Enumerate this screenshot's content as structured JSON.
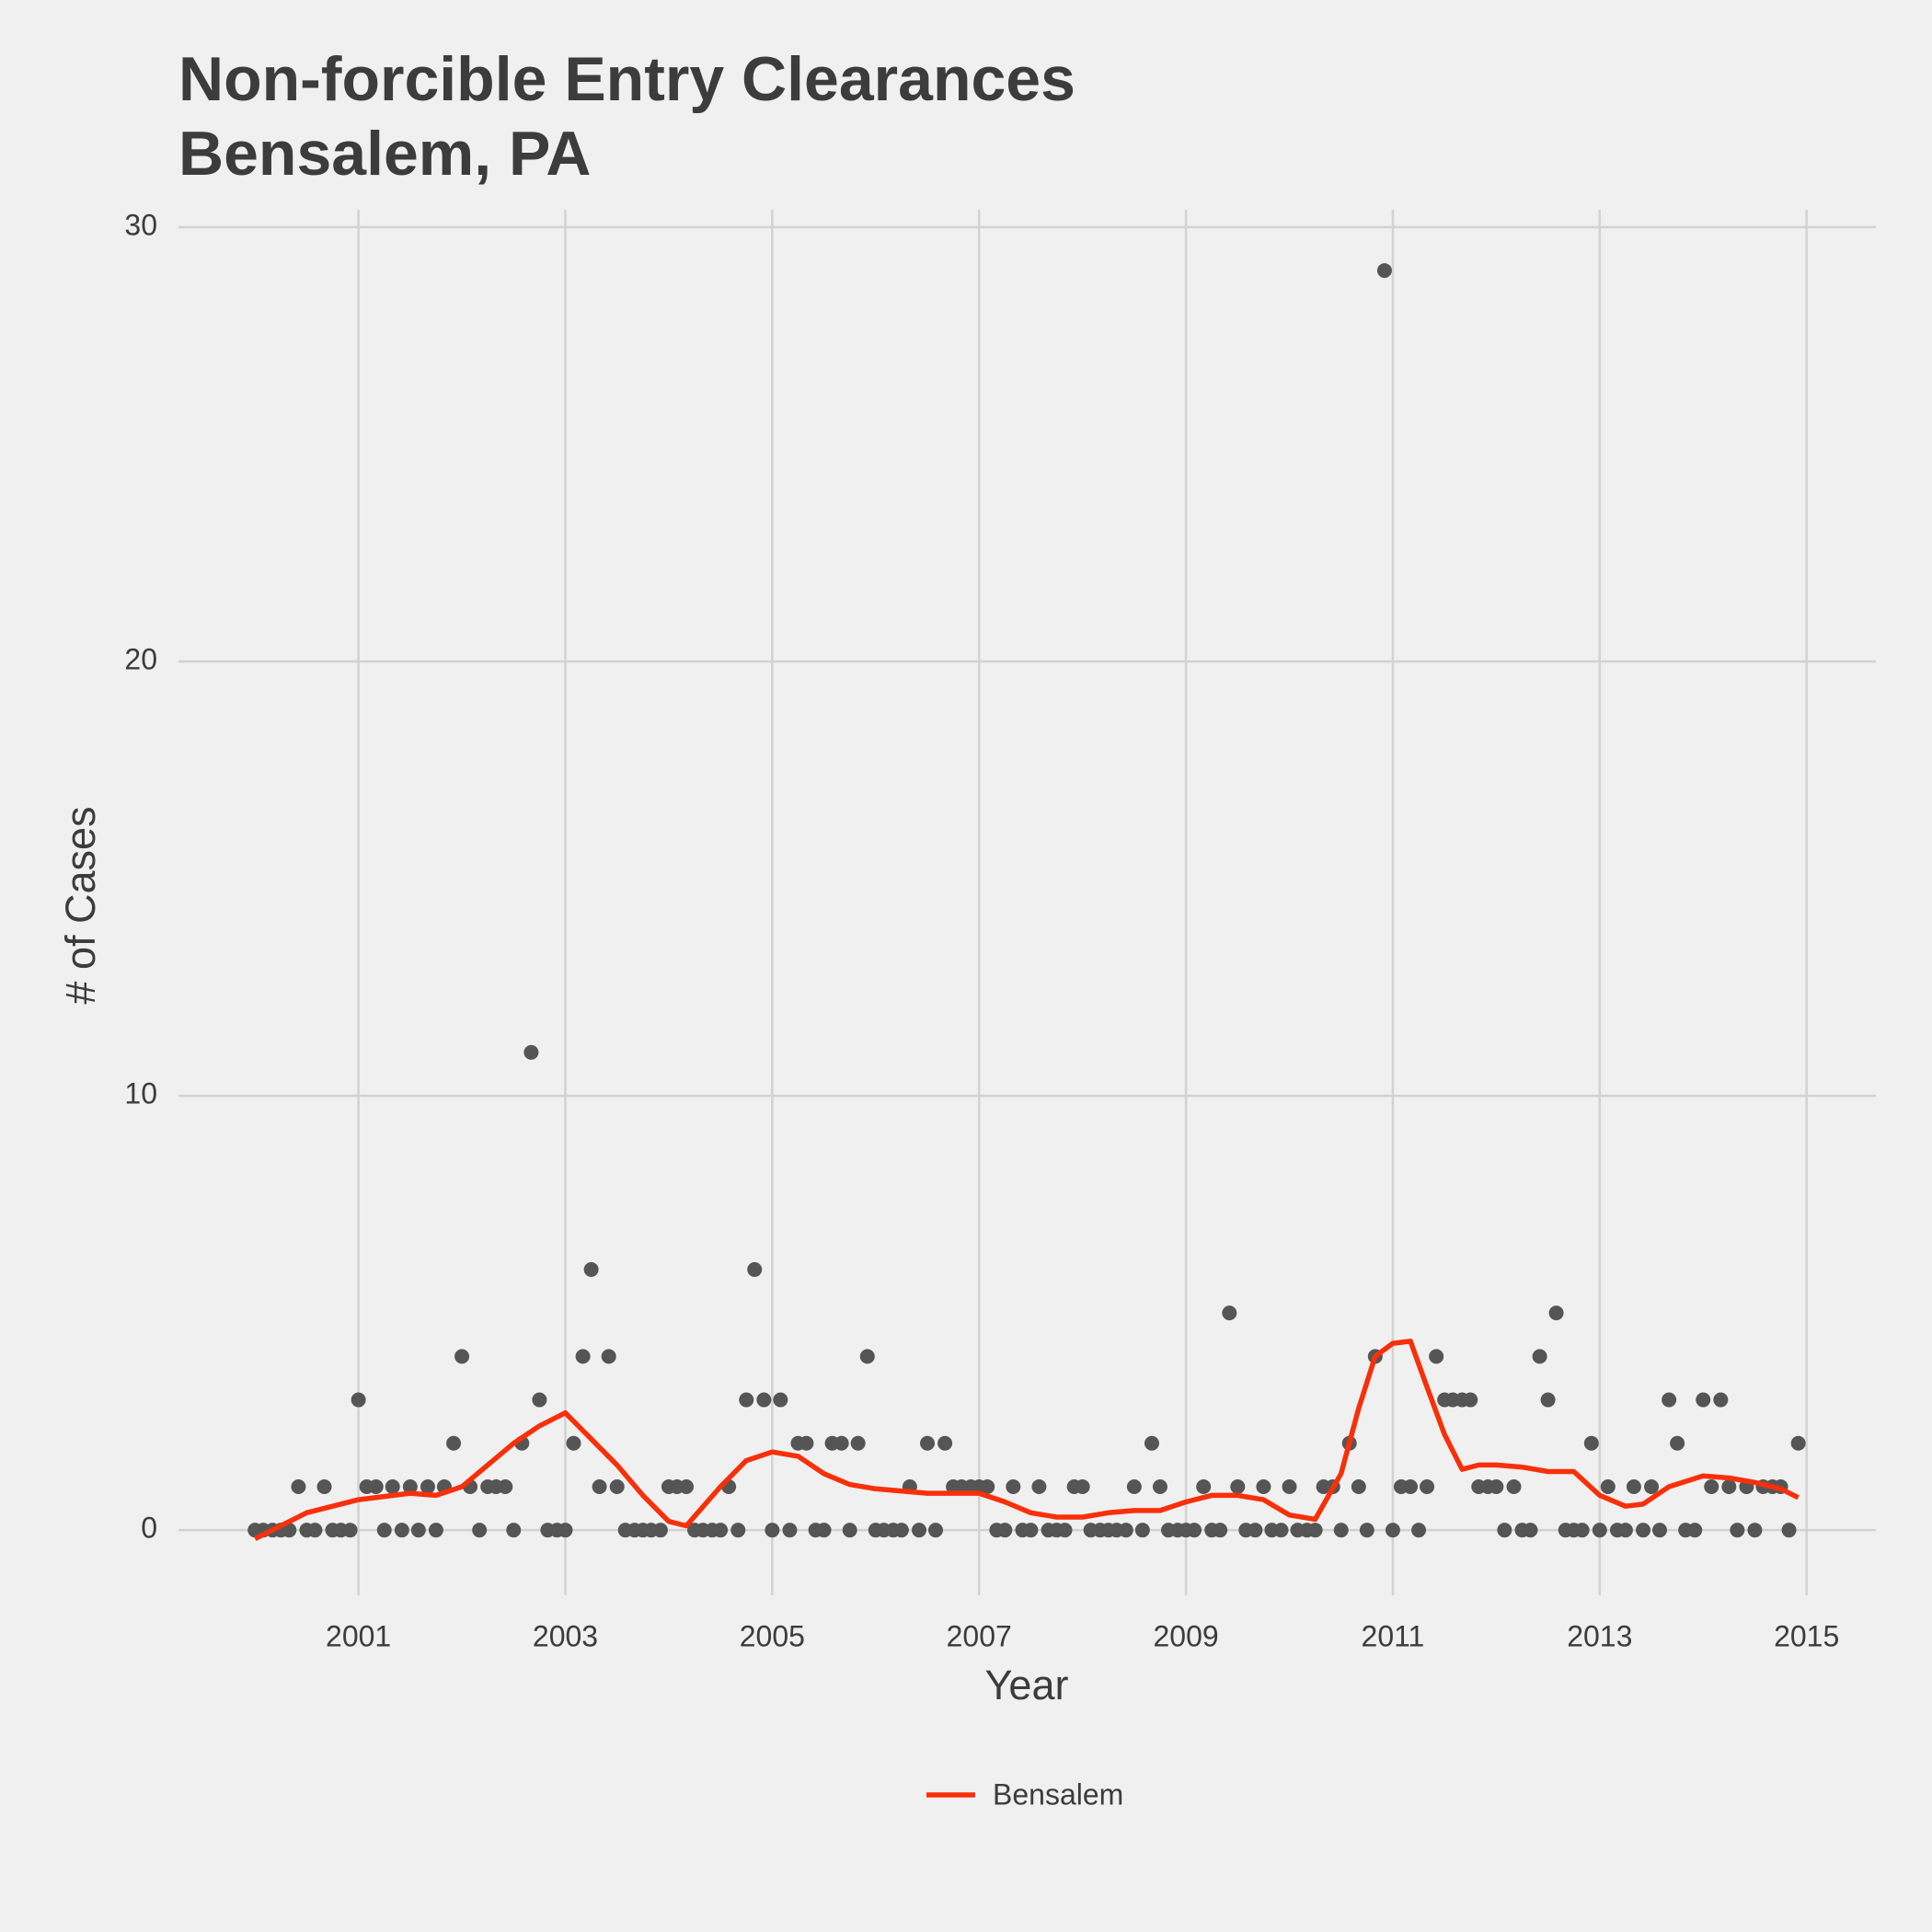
{
  "chart_data": {
    "type": "scatter",
    "title": "Non-forcible Entry Clearances",
    "subtitle": "Bensalem, PA",
    "x_label": "Year",
    "y_label": "# of Cases",
    "xlim": [
      1999.26,
      2015.67
    ],
    "ylim": [
      -1.5,
      30.4
    ],
    "xticks": [
      2001,
      2003,
      2005,
      2007,
      2009,
      2011,
      2013,
      2015
    ],
    "yticks": [
      0,
      10,
      20,
      30
    ],
    "grid": true,
    "legend": "bottom",
    "series": [
      {
        "type": "scatter",
        "color": "#555555",
        "x": [
          2000,
          2000.08,
          2000.17,
          2000.25,
          2000.33,
          2000.42,
          2000.5,
          2000.58,
          2000.67,
          2000.75,
          2000.83,
          2000.92,
          2001,
          2001.08,
          2001.17,
          2001.25,
          2001.33,
          2001.42,
          2001.5,
          2001.58,
          2001.67,
          2001.75,
          2001.83,
          2001.92,
          2002,
          2002.08,
          2002.17,
          2002.25,
          2002.33,
          2002.42,
          2002.5,
          2002.58,
          2002.67,
          2002.75,
          2002.83,
          2002.92,
          2003,
          2003.08,
          2003.17,
          2003.25,
          2003.33,
          2003.42,
          2003.5,
          2003.58,
          2003.67,
          2003.75,
          2003.83,
          2003.92,
          2004,
          2004.08,
          2004.17,
          2004.25,
          2004.33,
          2004.42,
          2004.5,
          2004.58,
          2004.67,
          2004.75,
          2004.83,
          2004.92,
          2005,
          2005.08,
          2005.17,
          2005.25,
          2005.33,
          2005.42,
          2005.5,
          2005.58,
          2005.67,
          2005.75,
          2005.83,
          2005.92,
          2006,
          2006.08,
          2006.17,
          2006.25,
          2006.33,
          2006.42,
          2006.5,
          2006.58,
          2006.67,
          2006.75,
          2006.83,
          2006.92,
          2007,
          2007.08,
          2007.17,
          2007.25,
          2007.33,
          2007.42,
          2007.5,
          2007.58,
          2007.67,
          2007.75,
          2007.83,
          2007.92,
          2008,
          2008.08,
          2008.17,
          2008.25,
          2008.33,
          2008.42,
          2008.5,
          2008.58,
          2008.67,
          2008.75,
          2008.83,
          2008.92,
          2009,
          2009.08,
          2009.17,
          2009.25,
          2009.33,
          2009.42,
          2009.5,
          2009.58,
          2009.67,
          2009.75,
          2009.83,
          2009.92,
          2010,
          2010.08,
          2010.17,
          2010.25,
          2010.33,
          2010.42,
          2010.5,
          2010.58,
          2010.67,
          2010.75,
          2010.83,
          2010.92,
          2011,
          2011.08,
          2011.17,
          2011.25,
          2011.33,
          2011.42,
          2011.5,
          2011.58,
          2011.67,
          2011.75,
          2011.83,
          2011.92,
          2012,
          2012.08,
          2012.17,
          2012.25,
          2012.33,
          2012.42,
          2012.5,
          2012.58,
          2012.67,
          2012.75,
          2012.83,
          2012.92,
          2013,
          2013.08,
          2013.17,
          2013.25,
          2013.33,
          2013.42,
          2013.5,
          2013.58,
          2013.67,
          2013.75,
          2013.83,
          2013.92,
          2014,
          2014.08,
          2014.17,
          2014.25,
          2014.33,
          2014.42,
          2014.5,
          2014.58,
          2014.67,
          2014.75,
          2014.83,
          2014.92
        ],
        "values": [
          0,
          0,
          0,
          0,
          0,
          1,
          0,
          0,
          1,
          0,
          0,
          0,
          3,
          1,
          1,
          0,
          1,
          0,
          1,
          0,
          1,
          0,
          1,
          2,
          4,
          1,
          0,
          1,
          1,
          1,
          0,
          2,
          11,
          3,
          0,
          0,
          0,
          2,
          4,
          6,
          1,
          4,
          1,
          0,
          0,
          0,
          0,
          0,
          1,
          1,
          1,
          0,
          0,
          0,
          0,
          1,
          0,
          3,
          6,
          3,
          0,
          3,
          0,
          2,
          2,
          0,
          0,
          2,
          2,
          0,
          2,
          4,
          0,
          0,
          0,
          0,
          1,
          0,
          2,
          0,
          2,
          1,
          1,
          1,
          1,
          1,
          0,
          0,
          1,
          0,
          0,
          1,
          0,
          0,
          0,
          1,
          1,
          0,
          0,
          0,
          0,
          0,
          1,
          0,
          2,
          1,
          0,
          0,
          0,
          0,
          1,
          0,
          0,
          5,
          1,
          0,
          0,
          1,
          0,
          0,
          1,
          0,
          0,
          0,
          1,
          1,
          0,
          2,
          1,
          0,
          4,
          29,
          0,
          1,
          1,
          0,
          1,
          4,
          3,
          3,
          3,
          3,
          1,
          1,
          1,
          0,
          1,
          0,
          0,
          4,
          3,
          5,
          0,
          0,
          0,
          2,
          0,
          1,
          0,
          0,
          1,
          0,
          1,
          0,
          3,
          2,
          0,
          0,
          3,
          1,
          3,
          1,
          0,
          1,
          0,
          1,
          1,
          1,
          0,
          2
        ]
      },
      {
        "type": "line",
        "name": "Bensalem",
        "color": "#f8300a",
        "x": [
          2000,
          2000.5,
          2001,
          2001.5,
          2001.75,
          2002,
          2002.25,
          2002.5,
          2002.75,
          2003,
          2003.25,
          2003.5,
          2003.75,
          2004,
          2004.17,
          2004.5,
          2004.75,
          2005,
          2005.25,
          2005.5,
          2005.75,
          2006,
          2006.5,
          2007,
          2007.25,
          2007.5,
          2007.75,
          2008,
          2008.25,
          2008.5,
          2008.75,
          2009,
          2009.25,
          2009.5,
          2009.75,
          2010,
          2010.25,
          2010.5,
          2010.67,
          2010.83,
          2011,
          2011.17,
          2011.33,
          2011.5,
          2011.67,
          2011.83,
          2012,
          2012.25,
          2012.5,
          2012.75,
          2013,
          2013.25,
          2013.42,
          2013.67,
          2014,
          2014.25,
          2014.5,
          2014.75,
          2014.92
        ],
        "values": [
          -0.2,
          0.4,
          0.7,
          0.85,
          0.8,
          1.0,
          1.5,
          2.0,
          2.4,
          2.7,
          2.1,
          1.5,
          0.8,
          0.2,
          0.1,
          1.0,
          1.6,
          1.8,
          1.7,
          1.3,
          1.05,
          0.95,
          0.85,
          0.85,
          0.65,
          0.4,
          0.3,
          0.3,
          0.4,
          0.45,
          0.45,
          0.65,
          0.8,
          0.8,
          0.7,
          0.35,
          0.25,
          1.3,
          2.8,
          4.0,
          4.3,
          4.35,
          3.3,
          2.2,
          1.4,
          1.5,
          1.5,
          1.45,
          1.35,
          1.35,
          0.8,
          0.55,
          0.6,
          1.0,
          1.25,
          1.2,
          1.1,
          0.95,
          0.75
        ]
      }
    ]
  }
}
